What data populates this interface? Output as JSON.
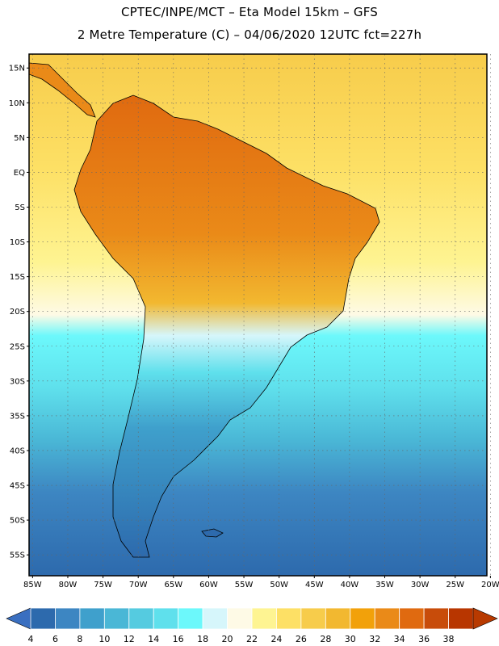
{
  "header": {
    "line1": "CPTEC/INPE/MCT –  Eta Model 15km – GFS",
    "line2": "2 Metre Temperature (C) – 04/06/2020 12UTC fct=227h"
  },
  "map": {
    "lat_labels": [
      "15N",
      "10N",
      "5N",
      "EQ",
      "5S",
      "10S",
      "15S",
      "20S",
      "25S",
      "30S",
      "35S",
      "40S",
      "45S",
      "50S",
      "55S"
    ],
    "lat_values": [
      15,
      10,
      5,
      0,
      -5,
      -10,
      -15,
      -20,
      -25,
      -30,
      -35,
      -40,
      -45,
      -50,
      -55
    ],
    "lat_range": [
      -58,
      17
    ],
    "lon_labels": [
      "85W",
      "80W",
      "75W",
      "70W",
      "65W",
      "60W",
      "55W",
      "50W",
      "45W",
      "40W",
      "35W",
      "30W",
      "25W",
      "20W"
    ],
    "lon_values": [
      -85,
      -80,
      -75,
      -70,
      -65,
      -60,
      -55,
      -50,
      -45,
      -40,
      -35,
      -30,
      -25,
      -20
    ],
    "lon_range": [
      -85.5,
      -20.5
    ]
  },
  "colorbar": {
    "labels": [
      "4",
      "6",
      "8",
      "10",
      "12",
      "14",
      "16",
      "18",
      "20",
      "22",
      "24",
      "26",
      "28",
      "30",
      "32",
      "34",
      "36",
      "38"
    ],
    "colors": [
      "#2d6aad",
      "#3d86c2",
      "#3fa0cc",
      "#4ab7d6",
      "#55cbe0",
      "#5fe0ec",
      "#6cf8fb",
      "#d6f6fb",
      "#fefae6",
      "#fef492",
      "#fde065",
      "#f7cc4b",
      "#f2b830",
      "#f2a10a",
      "#ea8a18",
      "#e06a10",
      "#c84c0a",
      "#b83600"
    ],
    "under_color": "#3a6fc0",
    "over_color": "#b83a00"
  }
}
